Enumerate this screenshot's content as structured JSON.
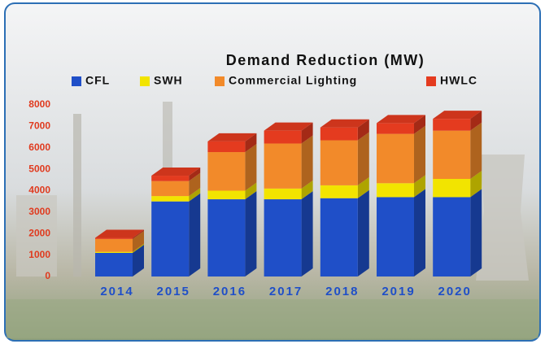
{
  "chart_data": {
    "type": "bar3d-stacked",
    "title": "Demand Reduction (MW)",
    "categories": [
      "2014",
      "2015",
      "2016",
      "2017",
      "2018",
      "2019",
      "2020"
    ],
    "series": [
      {
        "name": "CFL",
        "color": "#1f4fc8",
        "values": [
          1100,
          3500,
          3600,
          3600,
          3650,
          3700,
          3700
        ]
      },
      {
        "name": "SWH",
        "color": "#f2e400",
        "values": [
          50,
          250,
          400,
          500,
          600,
          650,
          850
        ]
      },
      {
        "name": "Commercial Lighting",
        "color": "#f28a2a",
        "values": [
          600,
          700,
          1800,
          2100,
          2100,
          2300,
          2250
        ]
      },
      {
        "name": "HWLC",
        "color": "#e43b1f",
        "values": [
          50,
          250,
          500,
          600,
          600,
          500,
          550
        ]
      }
    ],
    "ylim": [
      0,
      8000
    ],
    "yticks": [
      0,
      1000,
      2000,
      3000,
      4000,
      5000,
      6000,
      7000,
      8000
    ]
  }
}
